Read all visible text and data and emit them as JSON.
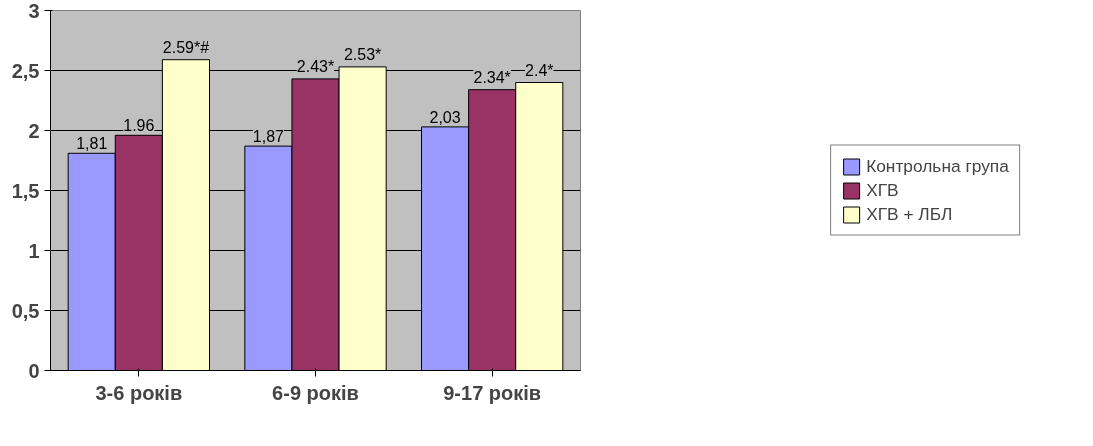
{
  "chart_data": {
    "type": "bar",
    "categories": [
      "3-6 років",
      "6-9 років",
      "9-17 років"
    ],
    "series": [
      {
        "name": "Контрольна група",
        "color": "#9999ff",
        "values": [
          1.81,
          1.87,
          2.03
        ],
        "value_labels": [
          "1,81",
          "1,87",
          "2,03"
        ]
      },
      {
        "name": "ХГВ",
        "color": "#993366",
        "values": [
          1.96,
          2.43,
          2.34
        ],
        "value_labels": [
          "1.96",
          "2.43*",
          "2.34*"
        ]
      },
      {
        "name": "ХГВ + ЛБЛ",
        "color": "#ffffcc",
        "values": [
          2.59,
          2.53,
          2.4
        ],
        "value_labels": [
          "2.59*#",
          "2.53*",
          "2.4*"
        ]
      }
    ],
    "ylim": [
      0,
      3
    ],
    "yticks": [
      0,
      {
        "value": 0.5,
        "label": "0,5"
      },
      1,
      {
        "value": 1.5,
        "label": "1,5"
      },
      2,
      {
        "value": 2.5,
        "label": "2,5"
      },
      3
    ],
    "grid": "y",
    "legend": "right"
  }
}
